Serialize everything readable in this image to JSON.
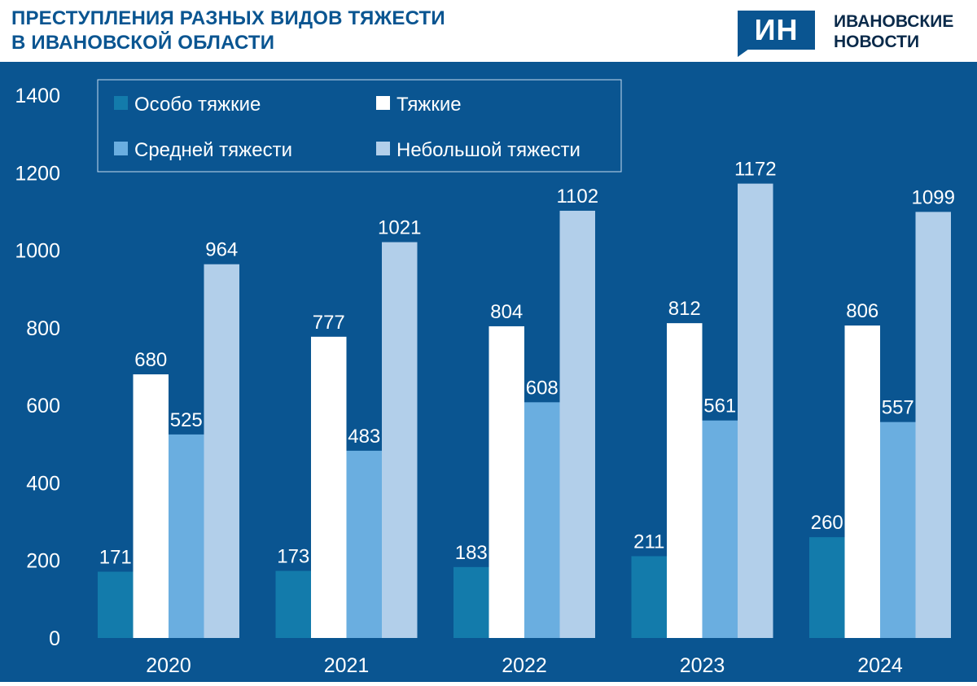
{
  "header": {
    "title_line1": "ПРЕСТУПЛЕНИЯ РАЗНЫХ ВИДОВ ТЯЖЕСТИ",
    "title_line2": "В ИВАНОВСКОЙ ОБЛАСТИ",
    "logo_mark": "ИН",
    "logo_line1": "ИВАНОВСКИЕ",
    "logo_line2": "НОВОСТИ"
  },
  "colors": {
    "background": "#0a5591",
    "title": "#0a5591",
    "axis_text": "#ffffff"
  },
  "chart_data": {
    "type": "bar",
    "categories": [
      "2020",
      "2021",
      "2022",
      "2023",
      "2024"
    ],
    "series": [
      {
        "name": "Особо тяжкие",
        "color": "#137bab",
        "values": [
          171,
          173,
          183,
          211,
          260
        ]
      },
      {
        "name": "Тяжкие",
        "color": "#ffffff",
        "values": [
          680,
          777,
          804,
          812,
          806
        ]
      },
      {
        "name": "Средней тяжести",
        "color": "#6aaee0",
        "values": [
          525,
          483,
          608,
          561,
          557
        ]
      },
      {
        "name": "Небольшой тяжести",
        "color": "#b2cfea",
        "values": [
          964,
          1021,
          1102,
          1172,
          1099
        ]
      }
    ],
    "yticks": [
      0,
      200,
      400,
      600,
      800,
      1000,
      1200,
      1400
    ],
    "ylim": [
      0,
      1400
    ],
    "xlabel": "",
    "ylabel": "",
    "grid": false,
    "legend": "top-left",
    "data_labels": true
  }
}
